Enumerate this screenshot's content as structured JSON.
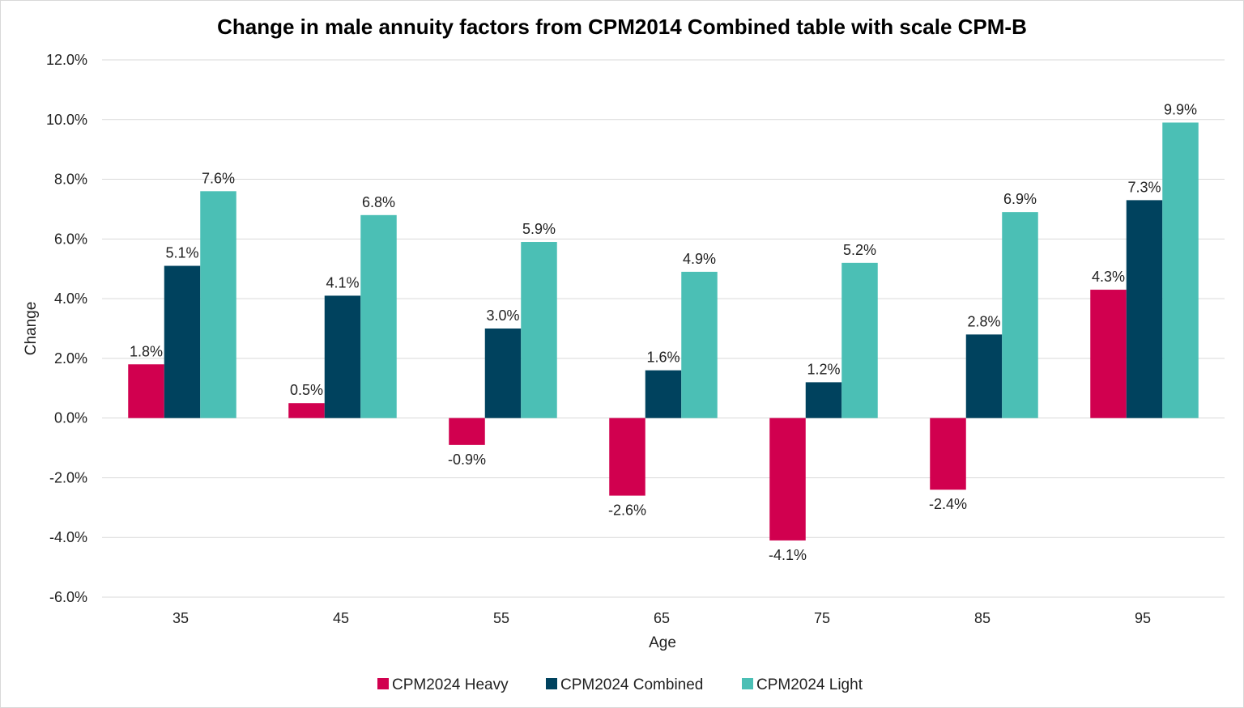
{
  "chart_data": {
    "type": "bar",
    "title": "Change in male annuity factors from CPM2014 Combined table with scale CPM-B",
    "xlabel": "Age",
    "ylabel": "Change",
    "categories": [
      "35",
      "45",
      "55",
      "65",
      "75",
      "85",
      "95"
    ],
    "ylim": [
      -6.0,
      12.0
    ],
    "ytick_step": 2.0,
    "ytick_labels": [
      "-6.0%",
      "-4.0%",
      "-2.0%",
      "0.0%",
      "2.0%",
      "4.0%",
      "6.0%",
      "8.0%",
      "10.0%",
      "12.0%"
    ],
    "grid": true,
    "legend_position": "bottom",
    "series": [
      {
        "name": "CPM2024 Heavy",
        "color": "#d1004f",
        "values": [
          1.8,
          0.5,
          -0.9,
          -2.6,
          -4.1,
          -2.4,
          4.3
        ],
        "labels": [
          "1.8%",
          "0.5%",
          "-0.9%",
          "-2.6%",
          "-4.1%",
          "-2.4%",
          "4.3%"
        ]
      },
      {
        "name": "CPM2024 Combined",
        "color": "#00425e",
        "values": [
          5.1,
          4.1,
          3.0,
          1.6,
          1.2,
          2.8,
          7.3
        ],
        "labels": [
          "5.1%",
          "4.1%",
          "3.0%",
          "1.6%",
          "1.2%",
          "2.8%",
          "7.3%"
        ]
      },
      {
        "name": "CPM2024 Light",
        "color": "#4bbfb5",
        "values": [
          7.6,
          6.8,
          5.9,
          4.9,
          5.2,
          6.9,
          9.9
        ],
        "labels": [
          "7.6%",
          "6.8%",
          "5.9%",
          "4.9%",
          "5.2%",
          "6.9%",
          "9.9%"
        ]
      }
    ]
  }
}
